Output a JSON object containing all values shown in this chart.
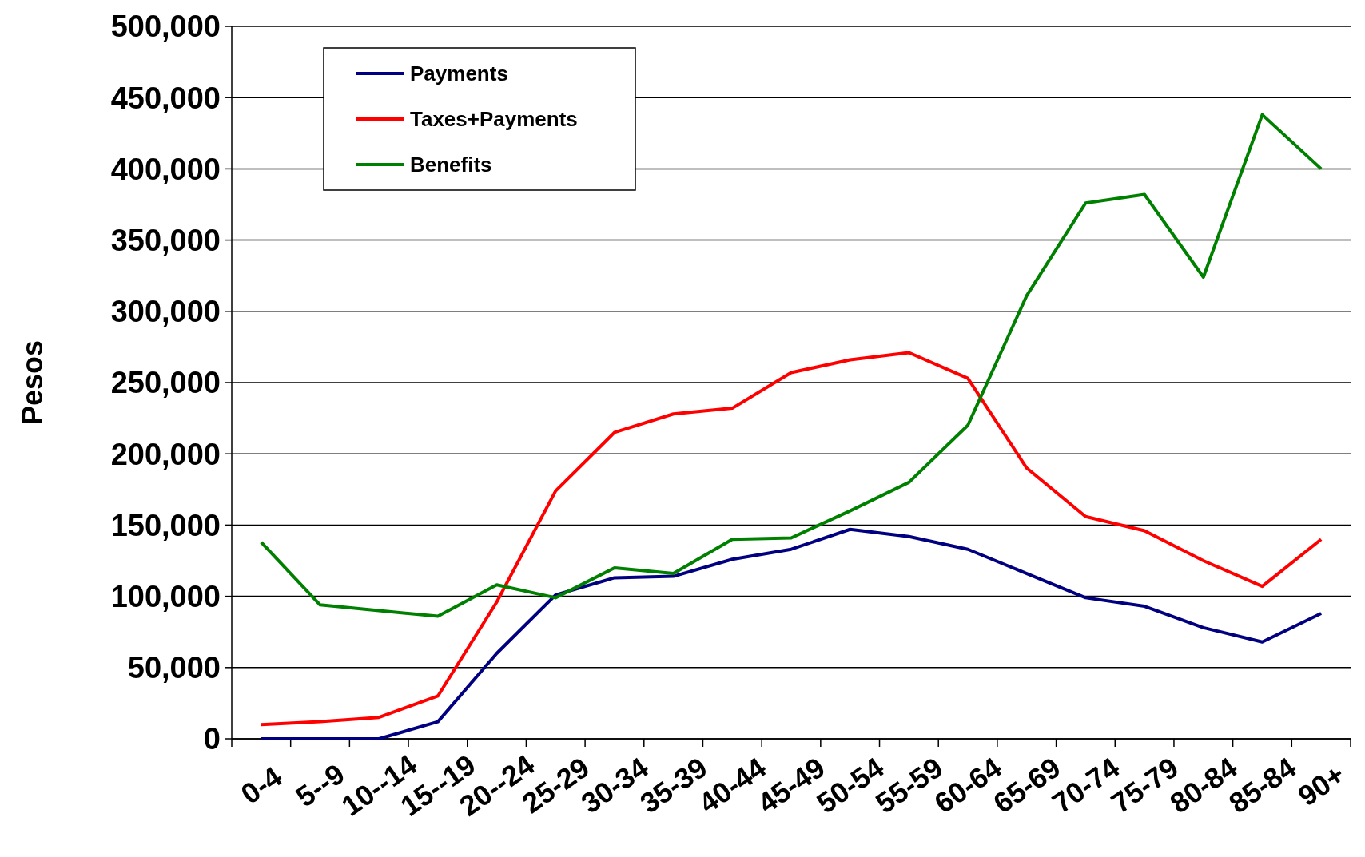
{
  "chart_data": {
    "type": "line",
    "ylabel": "Pesos",
    "categories": [
      "0-4",
      "5--9",
      "10--14",
      "15--19",
      "20--24",
      "25-29",
      "30-34",
      "35-39",
      "40-44",
      "45-49",
      "50-54",
      "55-59",
      "60-64",
      "65-69",
      "70-74",
      "75-79",
      "80-84",
      "85-84",
      "90+"
    ],
    "series": [
      {
        "name": "Payments",
        "color": "#000080",
        "values": [
          0,
          0,
          0,
          12000,
          60000,
          101000,
          113000,
          114000,
          126000,
          133000,
          147000,
          142000,
          133000,
          116000,
          99000,
          93000,
          78000,
          68000,
          88000
        ]
      },
      {
        "name": "Taxes+Payments",
        "color": "#ff0000",
        "values": [
          10000,
          12000,
          15000,
          30000,
          96000,
          174000,
          215000,
          228000,
          232000,
          257000,
          266000,
          271000,
          253000,
          190000,
          156000,
          146000,
          125000,
          107000,
          140000
        ]
      },
      {
        "name": "Benefits",
        "color": "#008000",
        "values": [
          138000,
          94000,
          90000,
          86000,
          108000,
          99000,
          120000,
          116000,
          140000,
          141000,
          160000,
          180000,
          220000,
          311000,
          376000,
          382000,
          324000,
          438000,
          400000
        ]
      }
    ],
    "ylim": [
      0,
      500000
    ],
    "yticks": [
      {
        "value": 0,
        "label": "0"
      },
      {
        "value": 50000,
        "label": "50,000"
      },
      {
        "value": 100000,
        "label": "100,000"
      },
      {
        "value": 150000,
        "label": "150,000"
      },
      {
        "value": 200000,
        "label": "200,000"
      },
      {
        "value": 250000,
        "label": "250,000"
      },
      {
        "value": 300000,
        "label": "300,000"
      },
      {
        "value": 350000,
        "label": "350,000"
      },
      {
        "value": 400000,
        "label": "400,000"
      },
      {
        "value": 450000,
        "label": "450,000"
      },
      {
        "value": 500000,
        "label": "500,000"
      }
    ],
    "grid": "y",
    "legend": "top left",
    "marker": "none",
    "line_style": "solid"
  }
}
